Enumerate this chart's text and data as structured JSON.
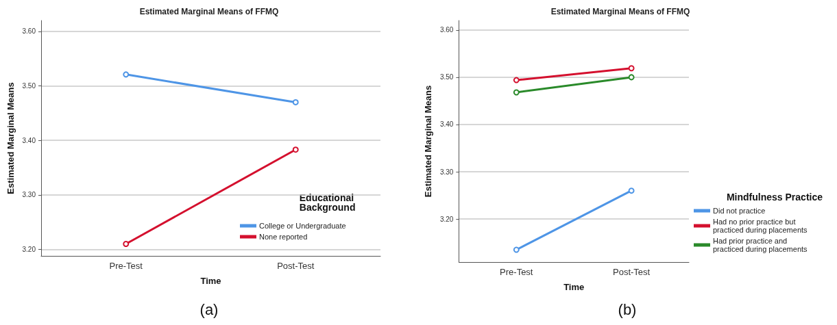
{
  "chart_data": [
    {
      "type": "line",
      "title": "Estimated Marginal Means of FFMQ",
      "xlabel": "Time",
      "ylabel": "Estimated Marginal Means",
      "legend_title": "Educational Background",
      "categories": [
        "Pre-Test",
        "Post-Test"
      ],
      "series": [
        {
          "name": "College or Undergraduate",
          "color": "#4e95e6",
          "values": [
            3.521,
            3.47
          ]
        },
        {
          "name": "None reported",
          "color": "#d4102e",
          "values": [
            3.21,
            3.383
          ]
        }
      ],
      "ylim": [
        3.188,
        3.62
      ],
      "yticks": [
        {
          "value": 3.2,
          "label": "3.20"
        },
        {
          "value": 3.3,
          "label": "3.30"
        },
        {
          "value": 3.4,
          "label": "3.40"
        },
        {
          "value": 3.5,
          "label": "3.50"
        },
        {
          "value": 3.6,
          "label": "3.60"
        }
      ],
      "grid": "y",
      "legend": "bottom right",
      "marker": "circle",
      "line_style": "solid",
      "annotations": [
        "(a)"
      ]
    },
    {
      "type": "line",
      "title": "Estimated Marginal Means of FFMQ",
      "xlabel": "Time",
      "ylabel": "Estimated Marginal Means",
      "legend_title": "Mindfulness Practice",
      "categories": [
        "Pre-Test",
        "Post-Test"
      ],
      "series": [
        {
          "name": "Did not practice",
          "color": "#4e95e6",
          "values": [
            3.135,
            3.26
          ]
        },
        {
          "name": "Had no prior practice but practiced during placements",
          "color": "#d4102e",
          "values": [
            3.494,
            3.519
          ]
        },
        {
          "name": "Had prior practice and practiced during placements",
          "color": "#2a8a2a",
          "values": [
            3.468,
            3.5
          ]
        }
      ],
      "ylim": [
        3.109,
        3.62
      ],
      "yticks": [
        {
          "value": 3.2,
          "label": "3.20"
        },
        {
          "value": 3.3,
          "label": "3.30"
        },
        {
          "value": 3.4,
          "label": "3.40"
        },
        {
          "value": 3.5,
          "label": "3.50"
        },
        {
          "value": 3.6,
          "label": "3.60"
        }
      ],
      "grid": "y",
      "legend": "bottom right",
      "marker": "circle",
      "line_style": "solid",
      "annotations": [
        "(b)"
      ]
    }
  ]
}
